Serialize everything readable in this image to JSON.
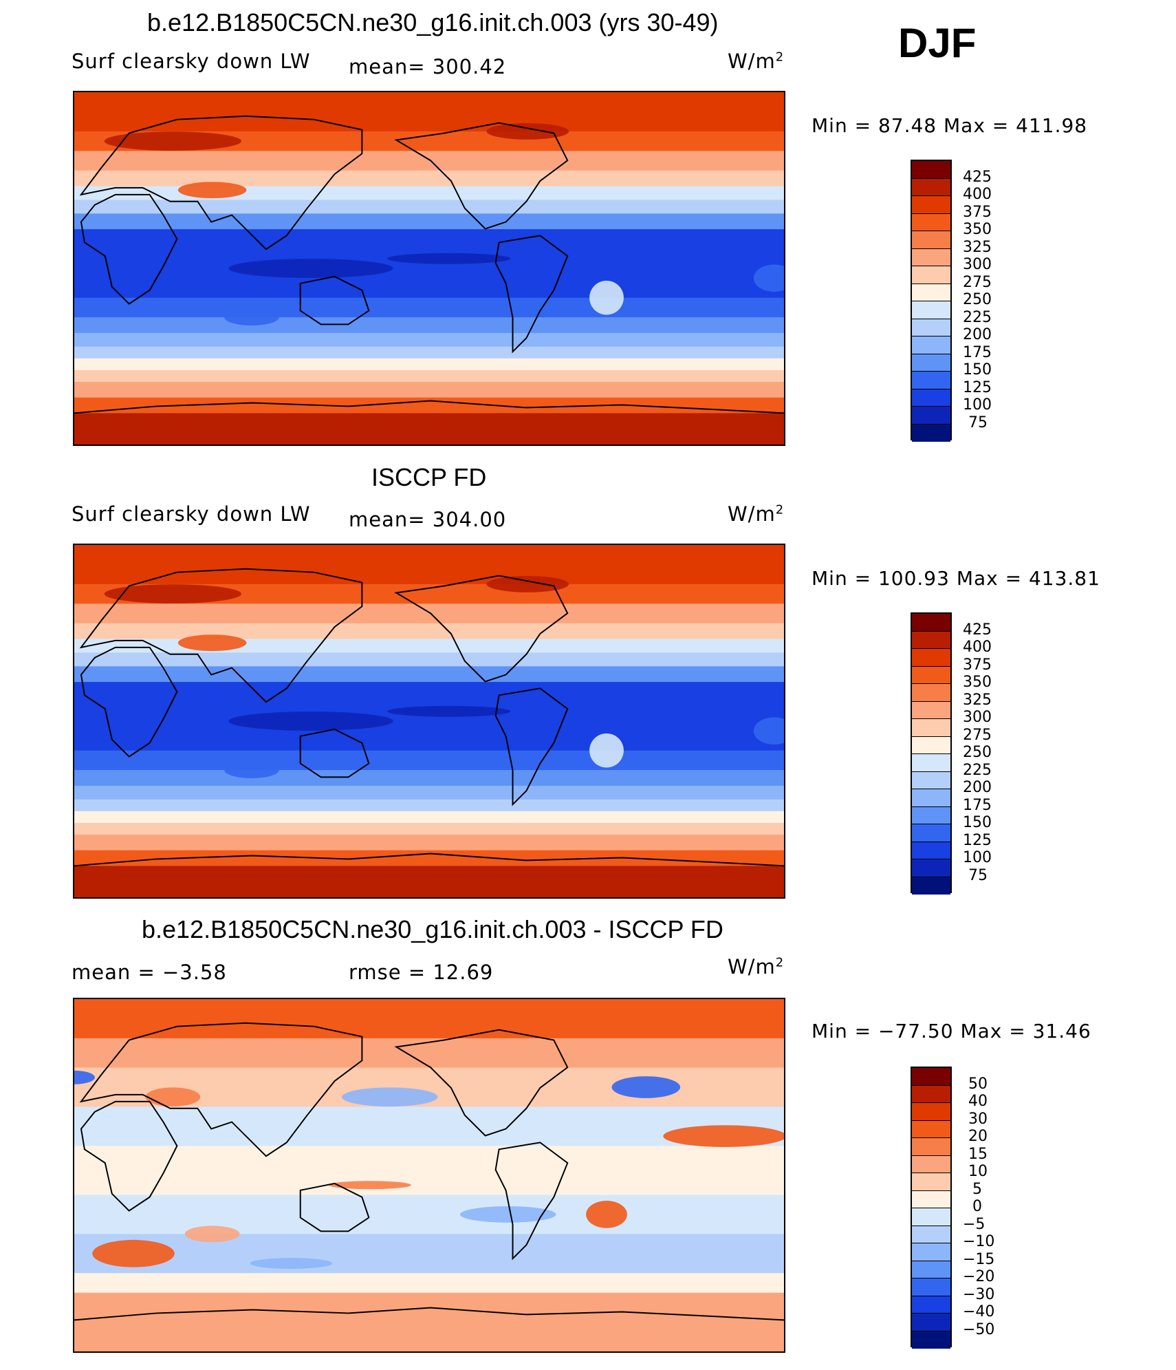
{
  "season": "DJF",
  "panels": [
    {
      "title": "b.e12.B1850C5CN.ne30_g16.init.ch.003 (yrs 30-49)",
      "variable": "Surf clearsky down LW",
      "stat1": "mean=  300.42",
      "stat2": "",
      "units": "W/m",
      "units_sup": "2",
      "minmax": "Min =   87.48 Max = 411.98",
      "field": "model",
      "colorbar": {
        "labels": [
          "425",
          "400",
          "375",
          "350",
          "325",
          "300",
          "275",
          "250",
          "225",
          "200",
          "175",
          "150",
          "125",
          "100",
          "75"
        ],
        "colors": [
          "#7a0000",
          "#b81e00",
          "#e03a00",
          "#f25a1a",
          "#f77e48",
          "#fba57e",
          "#fdcbae",
          "#fff2e3",
          "#d5e8fb",
          "#b4d0fa",
          "#8cb5fa",
          "#5f94f6",
          "#3266f0",
          "#1840e2",
          "#0c25b8",
          "#00127a"
        ]
      }
    },
    {
      "title": "ISCCP FD",
      "variable": "Surf clearsky down LW",
      "stat1": "mean=  304.00",
      "stat2": "",
      "units": "W/m",
      "units_sup": "2",
      "minmax": "Min = 100.93 Max = 413.81",
      "field": "obs",
      "colorbar": {
        "labels": [
          "425",
          "400",
          "375",
          "350",
          "325",
          "300",
          "275",
          "250",
          "225",
          "200",
          "175",
          "150",
          "125",
          "100",
          "75"
        ],
        "colors": [
          "#7a0000",
          "#b81e00",
          "#e03a00",
          "#f25a1a",
          "#f77e48",
          "#fba57e",
          "#fdcbae",
          "#fff2e3",
          "#d5e8fb",
          "#b4d0fa",
          "#8cb5fa",
          "#5f94f6",
          "#3266f0",
          "#1840e2",
          "#0c25b8",
          "#00127a"
        ]
      }
    },
    {
      "title": "b.e12.B1850C5CN.ne30_g16.init.ch.003 - ISCCP FD",
      "variable": "mean =    −3.58",
      "stat1": "rmse =    12.69",
      "stat2": "",
      "units": "W/m",
      "units_sup": "2",
      "minmax": "Min = −77.50 Max =    31.46",
      "field": "diff",
      "colorbar": {
        "labels": [
          "50",
          "40",
          "30",
          "20",
          "15",
          "10",
          "5",
          "0",
          "−5",
          "−10",
          "−15",
          "−20",
          "−30",
          "−40",
          "−50"
        ],
        "colors": [
          "#7a0000",
          "#b81e00",
          "#e03a00",
          "#f25a1a",
          "#f77e48",
          "#fba57e",
          "#fdcbae",
          "#fff2e3",
          "#d5e8fb",
          "#b4d0fa",
          "#8cb5fa",
          "#5f94f6",
          "#3266f0",
          "#1840e2",
          "#0c25b8",
          "#00127a"
        ]
      }
    }
  ]
}
